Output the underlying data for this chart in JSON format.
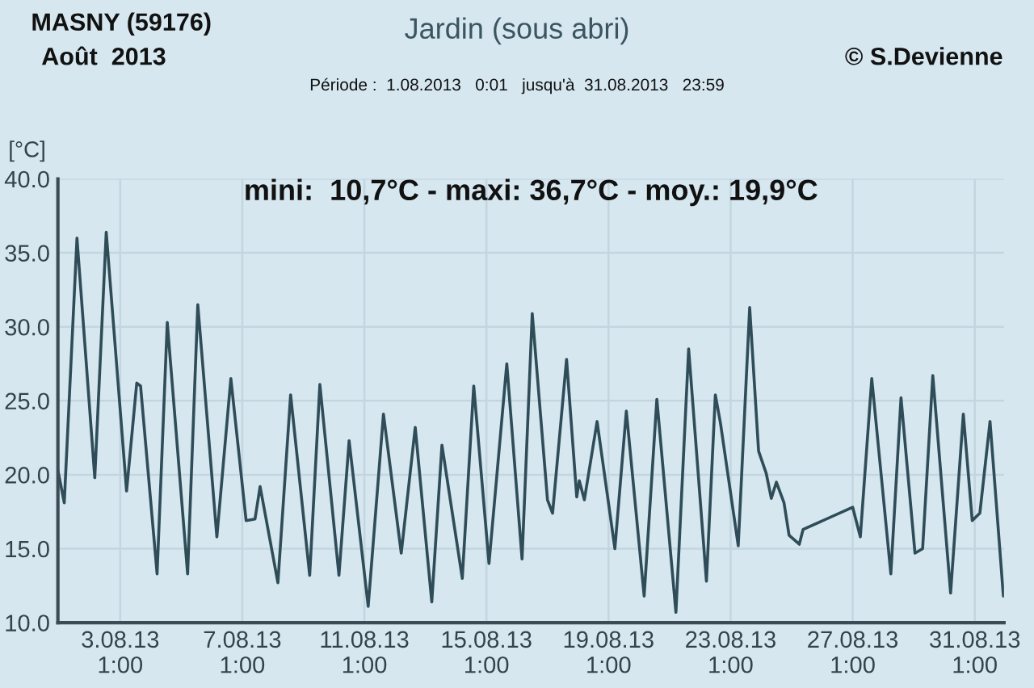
{
  "chart_data": {
    "type": "line",
    "title": "Jardin (sous abri)",
    "subtitle": "mini:  10,7°C - maxi: 36,7°C - moy.: 19,9°C",
    "ylabel": "[°C]",
    "annotations": [
      "MASNY (59176)",
      "Août  2013",
      "© S.Devienne",
      "Période :  1.08.2013   0:01   jusqu'à  31.08.2013   23:59"
    ],
    "series": [
      {
        "color": "#2f4d58",
        "x": [
          "2013-08-01T00:00",
          "2013-08-01T05:00",
          "2013-08-01T15:00",
          "2013-08-02T05:00",
          "2013-08-02T14:00",
          "2013-08-03T06:00",
          "2013-08-03T14:00",
          "2013-08-03T17:00",
          "2013-08-04T06:00",
          "2013-08-04T14:00",
          "2013-08-05T06:00",
          "2013-08-05T14:00",
          "2013-08-06T05:00",
          "2013-08-06T16:00",
          "2013-08-07T04:00",
          "2013-08-07T11:00",
          "2013-08-07T15:00",
          "2013-08-08T05:00",
          "2013-08-08T15:00",
          "2013-08-09T06:00",
          "2013-08-09T14:00",
          "2013-08-10T05:00",
          "2013-08-10T13:00",
          "2013-08-11T04:00",
          "2013-08-11T16:00",
          "2013-08-12T06:00",
          "2013-08-12T17:00",
          "2013-08-13T06:00",
          "2013-08-13T14:00",
          "2013-08-14T06:00",
          "2013-08-14T15:00",
          "2013-08-15T03:00",
          "2013-08-15T17:00",
          "2013-08-16T05:00",
          "2013-08-16T13:00",
          "2013-08-17T01:00",
          "2013-08-17T05:00",
          "2013-08-17T16:00",
          "2013-08-18T00:00",
          "2013-08-18T02:00",
          "2013-08-18T06:00",
          "2013-08-18T16:00",
          "2013-08-19T06:00",
          "2013-08-19T15:00",
          "2013-08-20T05:00",
          "2013-08-20T15:00",
          "2013-08-21T06:00",
          "2013-08-21T16:00",
          "2013-08-22T06:00",
          "2013-08-22T13:00",
          "2013-08-22T17:00",
          "2013-08-23T07:00",
          "2013-08-23T16:00",
          "2013-08-23T23:00",
          "2013-08-24T05:00",
          "2013-08-24T09:00",
          "2013-08-24T13:00",
          "2013-08-24T19:00",
          "2013-08-24T23:00",
          "2013-08-25T07:00",
          "2013-08-25T10:00",
          "2013-08-27T01:00",
          "2013-08-27T07:00",
          "2013-08-27T16:00",
          "2013-08-28T07:00",
          "2013-08-28T15:00",
          "2013-08-29T02:00",
          "2013-08-29T08:00",
          "2013-08-29T16:00",
          "2013-08-30T06:00",
          "2013-08-30T16:00",
          "2013-08-30T23:00",
          "2013-08-31T05:00",
          "2013-08-31T13:00",
          "2013-08-31T23:30"
        ],
        "values": [
          20.3,
          18.1,
          36.0,
          19.8,
          36.4,
          18.9,
          26.2,
          26.0,
          13.3,
          30.3,
          13.3,
          31.5,
          15.8,
          26.5,
          16.9,
          17.0,
          19.2,
          12.7,
          25.4,
          13.2,
          26.1,
          13.2,
          22.3,
          11.1,
          24.1,
          14.7,
          23.2,
          11.4,
          22.0,
          13.0,
          26.0,
          14.0,
          27.5,
          14.3,
          30.9,
          18.3,
          17.4,
          27.8,
          18.5,
          19.6,
          18.3,
          23.6,
          15.0,
          24.3,
          11.8,
          25.1,
          10.7,
          28.5,
          12.8,
          25.4,
          23.5,
          15.2,
          31.3,
          21.6,
          20.1,
          18.4,
          19.5,
          18.1,
          15.9,
          15.3,
          16.3,
          17.8,
          15.8,
          26.5,
          13.3,
          25.2,
          14.7,
          15.0,
          26.7,
          12.0,
          24.1,
          16.9,
          17.4,
          23.6,
          11.8
        ]
      }
    ],
    "xlim": [
      "2013-08-01T00:00",
      "2013-09-01T00:00"
    ],
    "xticks": [
      {
        "value": "2013-08-03T01:00",
        "label": "3.08.13\n1:00"
      },
      {
        "value": "2013-08-07T01:00",
        "label": "7.08.13\n1:00"
      },
      {
        "value": "2013-08-11T01:00",
        "label": "11.08.13\n1:00"
      },
      {
        "value": "2013-08-15T01:00",
        "label": "15.08.13\n1:00"
      },
      {
        "value": "2013-08-19T01:00",
        "label": "19.08.13\n1:00"
      },
      {
        "value": "2013-08-23T01:00",
        "label": "23.08.13\n1:00"
      },
      {
        "value": "2013-08-27T01:00",
        "label": "27.08.13\n1:00"
      },
      {
        "value": "2013-08-31T01:00",
        "label": "31.08.13\n1:00"
      }
    ],
    "ylim": [
      10,
      40
    ],
    "yticks": [
      {
        "value": 10,
        "label": "10.0"
      },
      {
        "value": 15,
        "label": "15.0"
      },
      {
        "value": 20,
        "label": "20.0"
      },
      {
        "value": 25,
        "label": "25.0"
      },
      {
        "value": 30,
        "label": "30.0"
      },
      {
        "value": 35,
        "label": "35.0"
      },
      {
        "value": 40,
        "label": "40.0"
      }
    ],
    "grid": true,
    "line_style": "solid"
  }
}
